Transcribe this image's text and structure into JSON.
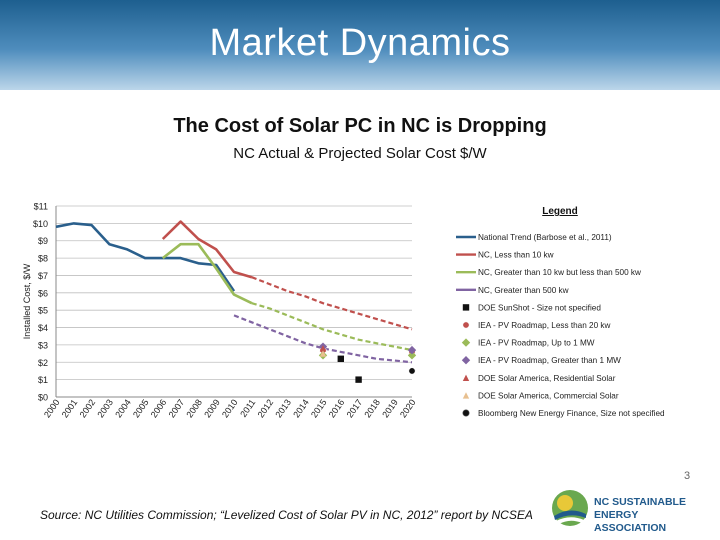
{
  "slide": {
    "title": "Market Dynamics",
    "headline": "The Cost of Solar PC in NC is Dropping",
    "subheadline": "NC Actual & Projected Solar Cost $/W",
    "page_number": "3",
    "source": "Source: NC Utilities Commission; “Levelized Cost of Solar PV in NC, 2012” report by NCSEA",
    "logo": {
      "line1": "NC SUSTAINABLE",
      "line2": "ENERGY ASSOCIATION"
    },
    "colors": {
      "banner": "#1d5f8f",
      "logo_blue": "#215a8c",
      "logo_green": "#6aa84f",
      "logo_yellow": "#e8c838"
    }
  },
  "chart_data": {
    "type": "line",
    "ylabel": "Installed Cost, $/W",
    "ylim": [
      0,
      11
    ],
    "y_ticks": [
      "$0",
      "$1",
      "$2",
      "$3",
      "$4",
      "$5",
      "$6",
      "$7",
      "$8",
      "$9",
      "$10",
      "$11"
    ],
    "x": [
      2000,
      2001,
      2002,
      2003,
      2004,
      2005,
      2006,
      2007,
      2008,
      2009,
      2010,
      2011,
      2012,
      2013,
      2014,
      2015,
      2016,
      2017,
      2018,
      2019,
      2020
    ],
    "grid": true,
    "legend_title": "Legend",
    "legend_placement": "right",
    "series": [
      {
        "name": "National Trend (Barbose et al., 2011)",
        "color": "#2a5f8c",
        "style": "solid",
        "points": [
          [
            2000,
            9.8
          ],
          [
            2001,
            10
          ],
          [
            2002,
            9.9
          ],
          [
            2003,
            8.8
          ],
          [
            2004,
            8.5
          ],
          [
            2005,
            8
          ],
          [
            2006,
            8
          ],
          [
            2007,
            8
          ],
          [
            2008,
            7.7
          ],
          [
            2009,
            7.6
          ],
          [
            2010,
            6.1
          ]
        ]
      },
      {
        "name": "NC, Less than 10 kw",
        "color": "#c0504d",
        "style": "solid",
        "points": [
          [
            2006,
            9.1
          ],
          [
            2007,
            10.1
          ],
          [
            2008,
            9.1
          ],
          [
            2009,
            8.5
          ],
          [
            2010,
            7.2
          ],
          [
            2011,
            6.9
          ]
        ]
      },
      {
        "name": "NC, Less than 10 kw projected",
        "color": "#c0504d",
        "style": "dashed",
        "points": [
          [
            2011,
            6.9
          ],
          [
            2012,
            6.5
          ],
          [
            2013,
            6.1
          ],
          [
            2014,
            5.8
          ],
          [
            2015,
            5.4
          ],
          [
            2016,
            5.1
          ],
          [
            2017,
            4.8
          ],
          [
            2018,
            4.5
          ],
          [
            2019,
            4.2
          ],
          [
            2020,
            3.9
          ]
        ]
      },
      {
        "name": "NC, Greater than 10 kw but less than 500 kw",
        "color": "#9bbb59",
        "style": "solid",
        "points": [
          [
            2006,
            8
          ],
          [
            2007,
            8.8
          ],
          [
            2008,
            8.8
          ],
          [
            2009,
            7.4
          ],
          [
            2010,
            5.9
          ],
          [
            2011,
            5.4
          ]
        ]
      },
      {
        "name": "NC, Greater than 10 kw but less than 500 kw projected",
        "color": "#9bbb59",
        "style": "dashed",
        "points": [
          [
            2011,
            5.4
          ],
          [
            2012,
            5.1
          ],
          [
            2013,
            4.7
          ],
          [
            2014,
            4.3
          ],
          [
            2015,
            3.9
          ],
          [
            2016,
            3.6
          ],
          [
            2017,
            3.3
          ],
          [
            2018,
            3.1
          ],
          [
            2019,
            2.9
          ],
          [
            2020,
            2.7
          ]
        ]
      },
      {
        "name": "NC, Greater than 500 kw",
        "color": "#8064a2",
        "style": "dashed",
        "points": [
          [
            2010,
            4.7
          ],
          [
            2011,
            4.3
          ],
          [
            2012,
            3.9
          ],
          [
            2013,
            3.5
          ],
          [
            2014,
            3.1
          ],
          [
            2015,
            2.8
          ],
          [
            2016,
            2.6
          ],
          [
            2017,
            2.4
          ],
          [
            2018,
            2.2
          ],
          [
            2019,
            2.1
          ],
          [
            2020,
            2
          ]
        ]
      }
    ],
    "markers": [
      {
        "name": "DOE SunShot - Size not specified",
        "symbol": "square",
        "color": "#111111",
        "points": [
          [
            2016,
            2.2
          ],
          [
            2017,
            1.0
          ]
        ]
      },
      {
        "name": "IEA - PV Roadmap, Less than 20 kw",
        "symbol": "circle",
        "color": "#c0504d",
        "points": [
          [
            2015,
            2.7
          ],
          [
            2020,
            2.6
          ]
        ]
      },
      {
        "name": "IEA - PV Roadmap, Up to 1 MW",
        "symbol": "diamond",
        "color": "#9bbb59",
        "points": [
          [
            2015,
            2.4
          ],
          [
            2020,
            2.4
          ]
        ]
      },
      {
        "name": "IEA - PV Roadmap, Greater than 1 MW",
        "symbol": "diamond",
        "color": "#8064a2",
        "points": [
          [
            2015,
            2.9
          ],
          [
            2020,
            2.7
          ]
        ]
      },
      {
        "name": "DOE Solar America, Residential Solar",
        "symbol": "triangle",
        "color": "#c0504d",
        "points": [
          [
            2015,
            2.8
          ]
        ]
      },
      {
        "name": "DOE Solar America, Commercial Solar",
        "symbol": "triangle",
        "color": "#e8c090",
        "points": [
          [
            2015,
            2.5
          ]
        ]
      },
      {
        "name": "Bloomberg New Energy Finance, Size not specified",
        "symbol": "circle",
        "color": "#111111",
        "points": [
          [
            2020,
            1.5
          ]
        ]
      }
    ],
    "legend": [
      {
        "label": "National Trend (Barbose et al., 2011)",
        "kind": "line",
        "color": "#2a5f8c"
      },
      {
        "label": "NC, Less than 10 kw",
        "kind": "line",
        "color": "#c0504d"
      },
      {
        "label": "NC, Greater than 10 kw but less than 500 kw",
        "kind": "line",
        "color": "#9bbb59"
      },
      {
        "label": "NC, Greater than 500 kw",
        "kind": "line",
        "color": "#8064a2"
      },
      {
        "label": "DOE SunShot - Size not specified",
        "kind": "square",
        "color": "#111111"
      },
      {
        "label": "IEA - PV Roadmap, Less than 20 kw",
        "kind": "circle",
        "color": "#c0504d"
      },
      {
        "label": "IEA - PV Roadmap, Up to 1 MW",
        "kind": "diamond",
        "color": "#9bbb59"
      },
      {
        "label": "IEA - PV Roadmap, Greater than 1 MW",
        "kind": "diamond",
        "color": "#8064a2"
      },
      {
        "label": "DOE Solar America, Residential Solar",
        "kind": "triangle",
        "color": "#c0504d"
      },
      {
        "label": "DOE Solar America, Commercial Solar",
        "kind": "triangle",
        "color": "#e8c090"
      },
      {
        "label": "Bloomberg New Energy Finance, Size not specified",
        "kind": "xcircle",
        "color": "#111111"
      }
    ]
  }
}
